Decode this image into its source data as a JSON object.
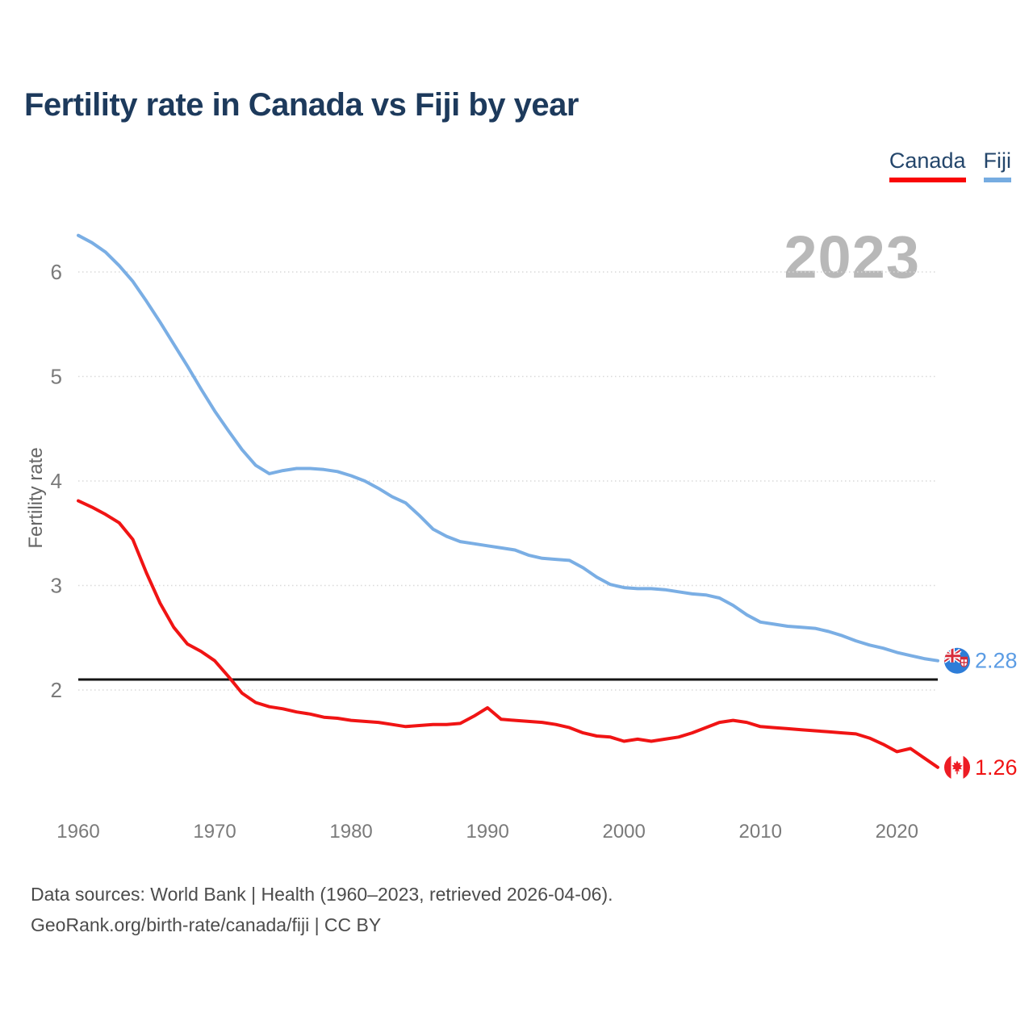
{
  "title": "Fertility rate in Canada vs Fiji by year",
  "watermark": "2023",
  "legend": [
    {
      "label": "Canada",
      "color": "#f90606"
    },
    {
      "label": "Fiji",
      "color": "#76ace1"
    }
  ],
  "end_labels": [
    {
      "series": "Fiji",
      "value": "2.28",
      "color": "#5b9ce4",
      "flag": "fiji-flag-icon"
    },
    {
      "series": "Canada",
      "value": "1.26",
      "color": "#f01414",
      "flag": "canada-flag-icon"
    }
  ],
  "footer": {
    "line1": "Data sources: World Bank | Health (1960–2023, retrieved 2026-04-06).",
    "line2": "GeoRank.org/birth-rate/canada/fiji | CC BY"
  },
  "chart_data": {
    "type": "line",
    "title": "Fertility rate in Canada vs Fiji by year",
    "xlabel": "",
    "ylabel": "Fertility rate",
    "xlim": [
      1960,
      2023
    ],
    "ylim": [
      1.1,
      6.6
    ],
    "xticks": [
      1960,
      1970,
      1980,
      1990,
      2000,
      2010,
      2020
    ],
    "yticks": [
      2,
      3,
      4,
      5,
      6
    ],
    "grid": "horizontal-dotted",
    "legend_position": "top-right",
    "reference_line": {
      "value": 2.1,
      "color": "#141414"
    },
    "x": [
      1960,
      1961,
      1962,
      1963,
      1964,
      1965,
      1966,
      1967,
      1968,
      1969,
      1970,
      1971,
      1972,
      1973,
      1974,
      1975,
      1976,
      1977,
      1978,
      1979,
      1980,
      1981,
      1982,
      1983,
      1984,
      1985,
      1986,
      1987,
      1988,
      1989,
      1990,
      1991,
      1992,
      1993,
      1994,
      1995,
      1996,
      1997,
      1998,
      1999,
      2000,
      2001,
      2002,
      2003,
      2004,
      2005,
      2006,
      2007,
      2008,
      2009,
      2010,
      2011,
      2012,
      2013,
      2014,
      2015,
      2016,
      2017,
      2018,
      2019,
      2020,
      2021,
      2022,
      2023
    ],
    "series": [
      {
        "name": "Fiji",
        "color": "#7aaee4",
        "values": [
          6.35,
          6.28,
          6.19,
          6.06,
          5.91,
          5.72,
          5.52,
          5.31,
          5.1,
          4.88,
          4.67,
          4.48,
          4.3,
          4.15,
          4.07,
          4.1,
          4.12,
          4.12,
          4.11,
          4.09,
          4.05,
          4.0,
          3.93,
          3.85,
          3.79,
          3.67,
          3.54,
          3.47,
          3.42,
          3.4,
          3.38,
          3.36,
          3.34,
          3.29,
          3.26,
          3.25,
          3.24,
          3.17,
          3.08,
          3.01,
          2.98,
          2.97,
          2.97,
          2.96,
          2.94,
          2.92,
          2.91,
          2.88,
          2.81,
          2.72,
          2.65,
          2.63,
          2.61,
          2.6,
          2.59,
          2.56,
          2.52,
          2.47,
          2.43,
          2.4,
          2.36,
          2.33,
          2.3,
          2.28
        ]
      },
      {
        "name": "Canada",
        "color": "#f01414",
        "values": [
          3.81,
          3.75,
          3.68,
          3.6,
          3.44,
          3.12,
          2.83,
          2.6,
          2.44,
          2.37,
          2.28,
          2.13,
          1.97,
          1.88,
          1.84,
          1.82,
          1.79,
          1.77,
          1.74,
          1.73,
          1.71,
          1.7,
          1.69,
          1.67,
          1.65,
          1.66,
          1.67,
          1.67,
          1.68,
          1.75,
          1.83,
          1.72,
          1.71,
          1.7,
          1.69,
          1.67,
          1.64,
          1.59,
          1.56,
          1.55,
          1.51,
          1.53,
          1.51,
          1.53,
          1.55,
          1.59,
          1.64,
          1.69,
          1.71,
          1.69,
          1.65,
          1.64,
          1.63,
          1.62,
          1.61,
          1.6,
          1.59,
          1.58,
          1.54,
          1.48,
          1.41,
          1.44,
          1.35,
          1.26
        ]
      }
    ]
  }
}
